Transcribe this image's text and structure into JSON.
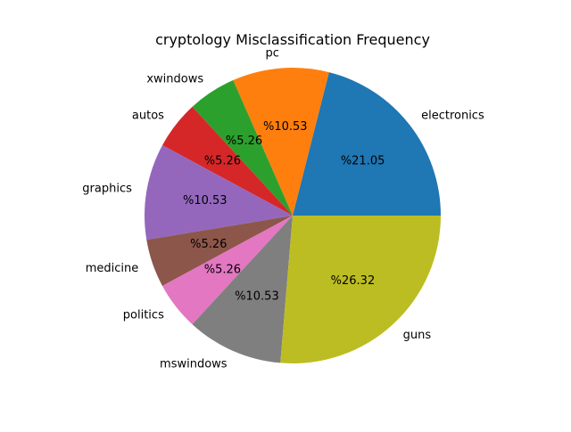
{
  "chart_data": {
    "type": "pie",
    "title": "cryptology Misclassification Frequency",
    "start_angle_deg": 0,
    "direction": "counterclockwise",
    "slices": [
      {
        "label": "electronics",
        "value": 21.05,
        "pct_label": "%21.05",
        "color": "#1f77b4"
      },
      {
        "label": "pc",
        "value": 10.53,
        "pct_label": "%10.53",
        "color": "#ff7f0e"
      },
      {
        "label": "xwindows",
        "value": 5.26,
        "pct_label": "%5.26",
        "color": "#2ca02c"
      },
      {
        "label": "autos",
        "value": 5.26,
        "pct_label": "%5.26",
        "color": "#d62728"
      },
      {
        "label": "graphics",
        "value": 10.53,
        "pct_label": "%10.53",
        "color": "#9467bd"
      },
      {
        "label": "medicine",
        "value": 5.26,
        "pct_label": "%5.26",
        "color": "#8c564b"
      },
      {
        "label": "politics",
        "value": 5.26,
        "pct_label": "%5.26",
        "color": "#e377c2"
      },
      {
        "label": "mswindows",
        "value": 10.53,
        "pct_label": "%10.53",
        "color": "#7f7f7f"
      },
      {
        "label": "guns",
        "value": 26.32,
        "pct_label": "%26.32",
        "color": "#bcbd22"
      }
    ]
  }
}
